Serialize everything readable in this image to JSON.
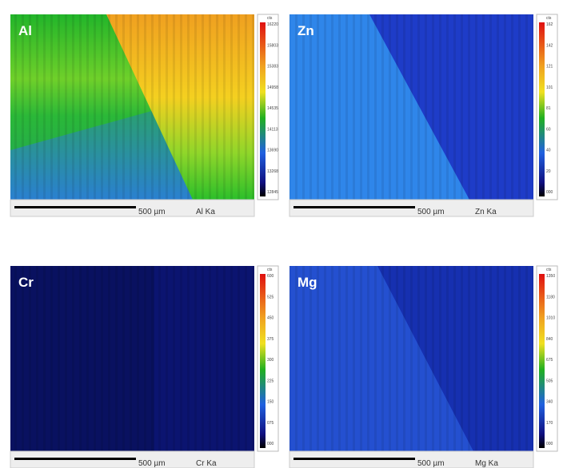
{
  "panels": [
    {
      "label": "Al",
      "scale": "500 µm",
      "line": "Al Ka",
      "unit": "cts",
      "colorbar": [
        "16220",
        "15803",
        "15383",
        "14958",
        "14535",
        "14113",
        "13690",
        "13268",
        "12845"
      ]
    },
    {
      "label": "Zn",
      "scale": "500 µm",
      "line": "Zn Ka",
      "unit": "cts",
      "colorbar": [
        "162",
        "142",
        "121",
        "101",
        "81",
        "60",
        "40",
        "20",
        "000"
      ]
    },
    {
      "label": "Cr",
      "scale": "500 µm",
      "line": "Cr Ka",
      "unit": "cts",
      "colorbar": [
        "600",
        "525",
        "450",
        "375",
        "300",
        "225",
        "150",
        "075",
        "000"
      ]
    },
    {
      "label": "Mg",
      "scale": "500 µm",
      "line": "Mg Ka",
      "unit": "cts",
      "colorbar": [
        "1350",
        "1180",
        "1010",
        "840",
        "675",
        "505",
        "340",
        "170",
        "000"
      ]
    }
  ]
}
